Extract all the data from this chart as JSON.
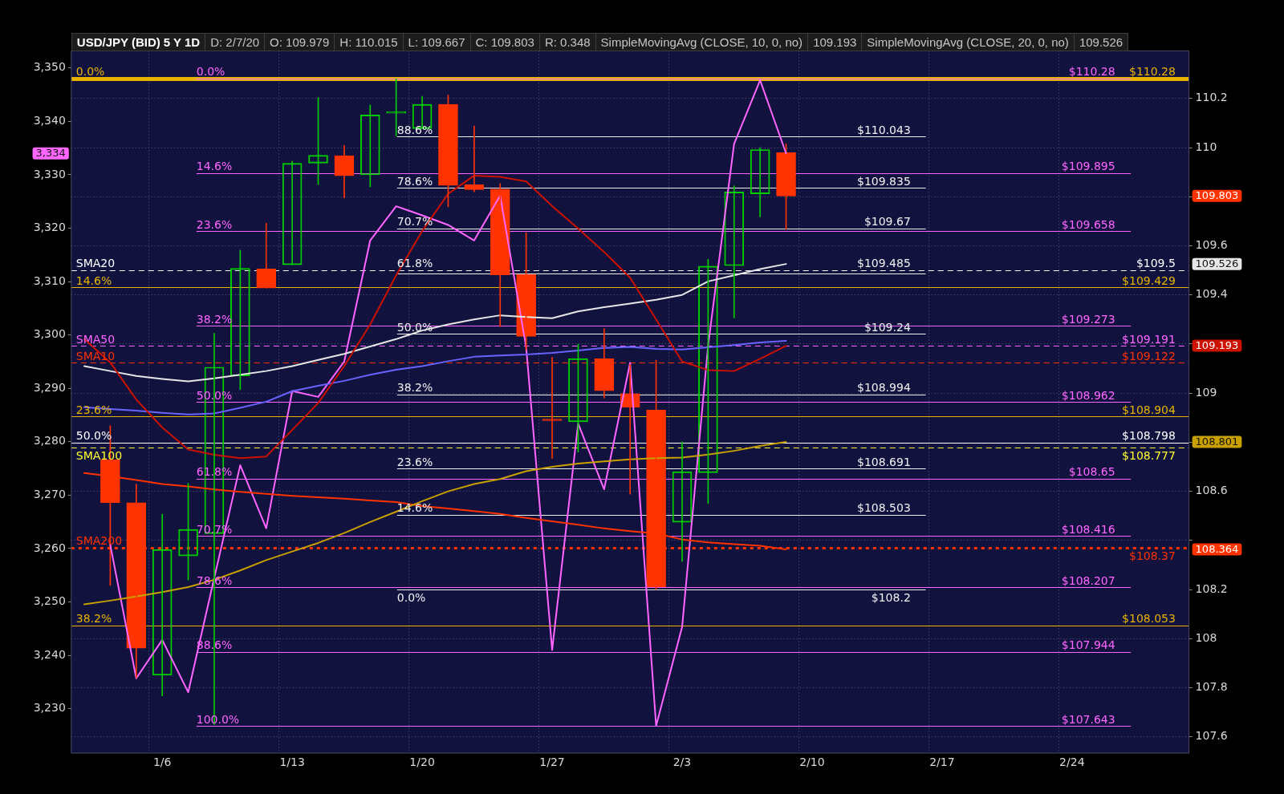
{
  "chart_data": {
    "type": "candlestick",
    "title": "USD/JPY (BID) 5 Y 1D",
    "annotations": [
      "D: 2/7/20",
      "O: 109.979",
      "H: 110.015",
      "L: 109.667",
      "C: 109.803",
      "R: 0.348",
      "SimpleMovingAvg (CLOSE, 10, 0, no)",
      "109.193",
      "SimpleMovingAvg (CLOSE, 20, 0, no)",
      "109.526",
      {
        "text": "0.0%",
        "y": 110.28
      },
      {
        "text": "14.6%",
        "y": 109.429
      },
      {
        "text": "23.6%",
        "y": 108.904
      },
      {
        "text": "38.2%",
        "y": 108.053
      },
      {
        "text": "50.0%",
        "y": 108.798
      },
      {
        "text": "88.6%",
        "y": 110.043
      },
      {
        "text": "78.6%",
        "y": 109.835
      },
      {
        "text": "70.7%",
        "y": 109.67
      },
      {
        "text": "61.8%",
        "y": 109.485
      },
      {
        "text": "50.0%",
        "y": 109.24
      },
      {
        "text": "38.2%",
        "y": 108.994
      },
      {
        "text": "23.6%",
        "y": 108.691
      },
      {
        "text": "14.6%",
        "y": 108.503
      },
      {
        "text": "0.0%",
        "y": 108.2
      },
      {
        "text": "0.0%",
        "y": 110.28
      },
      {
        "text": "14.6%",
        "y": 109.895
      },
      {
        "text": "23.6%",
        "y": 109.658
      },
      {
        "text": "38.2%",
        "y": 109.273
      },
      {
        "text": "50.0%",
        "y": 108.962
      },
      {
        "text": "61.8%",
        "y": 108.65
      },
      {
        "text": "70.7%",
        "y": 108.416
      },
      {
        "text": "78.6%",
        "y": 108.207
      },
      {
        "text": "88.6%",
        "y": 107.944
      },
      {
        "text": "100.0%",
        "y": 107.643
      },
      {
        "text": "SMA20",
        "y": 109.5
      },
      {
        "text": "SMA50",
        "y": 109.191
      },
      {
        "text": "SMA10",
        "y": 109.122
      },
      {
        "text": "SMA100",
        "y": 108.777
      },
      {
        "text": "SMA200",
        "y": 108.37
      }
    ],
    "categories": [
      null,
      null,
      null,
      "1/6",
      null,
      null,
      null,
      null,
      "1/13",
      null,
      null,
      null,
      null,
      "1/20",
      null,
      null,
      null,
      null,
      "1/27",
      null,
      null,
      null,
      null,
      "2/3",
      null,
      null,
      null,
      null,
      "2/10",
      null,
      null,
      null,
      null,
      "2/17",
      null,
      null,
      null,
      null,
      "2/24",
      null,
      null,
      null,
      null
    ],
    "ohlc": [
      null,
      [
        108.729,
        108.867,
        108.217,
        108.554
      ],
      [
        108.554,
        108.63,
        107.841,
        107.961
      ],
      [
        107.851,
        108.507,
        107.767,
        108.363
      ],
      [
        108.337,
        108.633,
        108.239,
        108.445
      ],
      [
        108.428,
        109.244,
        107.65,
        109.106
      ],
      [
        109.07,
        109.582,
        109.014,
        109.508
      ],
      [
        109.506,
        109.692,
        109.428,
        109.428
      ],
      [
        109.523,
        109.944,
        109.523,
        109.936
      ],
      [
        109.937,
        110.204,
        109.849,
        109.969
      ],
      [
        109.967,
        110.009,
        109.795,
        109.885
      ],
      [
        109.889,
        110.174,
        109.84,
        110.133
      ],
      [
        110.14,
        110.28,
        110.048,
        110.144
      ],
      [
        110.077,
        110.209,
        110.077,
        110.176
      ],
      [
        110.176,
        110.214,
        109.759,
        109.846
      ],
      [
        109.849,
        110.088,
        109.82,
        109.829
      ],
      [
        109.831,
        109.854,
        109.271,
        109.482
      ],
      [
        109.484,
        109.654,
        109.176,
        109.231
      ],
      [
        108.893,
        109.146,
        108.735,
        108.888
      ],
      [
        108.883,
        109.199,
        108.76,
        109.141
      ],
      [
        109.141,
        109.263,
        108.98,
        109.01
      ],
      [
        108.998,
        109.117,
        108.589,
        108.942
      ],
      [
        108.931,
        109.134,
        108.2,
        108.21
      ],
      [
        108.474,
        108.801,
        108.315,
        108.68
      ],
      [
        108.676,
        109.545,
        108.55,
        109.517
      ],
      [
        109.519,
        109.844,
        109.306,
        109.819
      ],
      [
        109.812,
        110.0,
        109.718,
        109.992
      ],
      [
        109.979,
        110.015,
        109.667,
        109.803
      ],
      null,
      null,
      null,
      null,
      null,
      null,
      null,
      null,
      null,
      null,
      null,
      null,
      null,
      null,
      null
    ],
    "colors": [
      null,
      "#ff3300",
      "#ff3300",
      "#00cc00",
      "#00cc00",
      "#00cc00",
      "#00cc00",
      "#ff3300",
      "#00cc00",
      "#00cc00",
      "#ff3300",
      "#00cc00",
      "#00cc00",
      "#00cc00",
      "#ff3300",
      "#ff3300",
      "#ff3300",
      "#ff3300",
      "#ff3300",
      "#00cc00",
      "#ff3300",
      "#ff3300",
      "#ff3300",
      "#00cc00",
      "#00cc00",
      "#00cc00",
      "#00cc00",
      "#ff3300",
      null,
      null,
      null,
      null,
      null,
      null,
      null,
      null,
      null,
      null,
      null,
      null,
      null,
      null,
      null
    ],
    "series": [
      {
        "type": "line",
        "color": "#cc1100",
        "values": [
          109.22,
          109.125,
          108.974,
          108.86,
          108.77,
          108.749,
          108.735,
          108.742,
          108.85,
          108.96,
          109.11,
          109.28,
          109.48,
          109.66,
          109.812,
          109.886,
          109.881,
          109.862,
          109.762,
          109.67,
          109.575,
          109.47,
          109.3,
          109.129,
          109.094,
          109.09,
          109.14,
          109.193,
          null,
          null,
          null,
          null,
          null,
          null,
          null,
          null,
          null,
          null,
          null,
          null,
          null,
          null,
          null
        ]
      },
      {
        "type": "line",
        "color": "#e6e6e6",
        "values": [
          109.11,
          109.09,
          109.07,
          109.058,
          109.048,
          109.06,
          109.075,
          109.09,
          109.11,
          109.135,
          109.16,
          109.19,
          109.22,
          109.255,
          109.28,
          109.3,
          109.317,
          109.31,
          109.305,
          109.333,
          109.35,
          109.365,
          109.38,
          109.4,
          109.455,
          109.48,
          109.505,
          109.526,
          null,
          null,
          null,
          null,
          null,
          null,
          null,
          null,
          null,
          null,
          null,
          null,
          null,
          null,
          null
        ]
      },
      {
        "type": "line",
        "color": "#6a62ff",
        "values": [
          108.943,
          108.935,
          108.929,
          108.92,
          108.913,
          108.917,
          108.94,
          108.965,
          109.008,
          109.03,
          109.05,
          109.075,
          109.095,
          109.11,
          109.13,
          109.148,
          109.153,
          109.157,
          109.164,
          109.174,
          109.184,
          109.188,
          109.18,
          109.178,
          109.187,
          109.196,
          109.206,
          109.213,
          null,
          null,
          null,
          null,
          null,
          null,
          null,
          null,
          null,
          null,
          null,
          null,
          null,
          null,
          null
        ]
      },
      {
        "type": "line",
        "color": "#c8a000",
        "values": [
          108.14,
          108.155,
          108.172,
          108.19,
          108.21,
          108.24,
          108.278,
          108.32,
          108.355,
          108.39,
          108.43,
          108.475,
          108.517,
          108.56,
          108.6,
          108.63,
          108.65,
          108.682,
          108.7,
          108.713,
          108.722,
          108.73,
          108.735,
          108.738,
          108.75,
          108.765,
          108.785,
          108.801,
          null,
          null,
          null,
          null,
          null,
          null,
          null,
          null,
          null,
          null,
          null,
          null,
          null,
          null,
          null
        ]
      },
      {
        "type": "line",
        "color": "#ff3300",
        "values": [
          108.675,
          108.662,
          108.646,
          108.63,
          108.62,
          108.608,
          108.598,
          108.59,
          108.582,
          108.576,
          108.57,
          108.563,
          108.556,
          108.54,
          108.53,
          108.52,
          108.508,
          108.492,
          108.478,
          108.464,
          108.449,
          108.438,
          108.428,
          108.404,
          108.392,
          108.385,
          108.378,
          108.364,
          null,
          null,
          null,
          null,
          null,
          null,
          null,
          null,
          null,
          null,
          null,
          null,
          null,
          null,
          null
        ]
      },
      {
        "type": "line",
        "axis": "y2",
        "color": "#ff66ff",
        "values": [
          null,
          3260.7,
          3235.7,
          3242.9,
          3233.1,
          3254.5,
          3275.6,
          3263.8,
          3289.5,
          3288.4,
          3295,
          3317.7,
          3324.1,
          3322.4,
          3320.6,
          3317.7,
          3326.1,
          3297.7,
          3241,
          3283.4,
          3271.1,
          3294.8,
          3226.8,
          3245.3,
          3298,
          3335.8,
          3347.7,
          3334,
          null,
          null,
          null,
          null,
          null,
          null,
          null,
          null,
          null,
          null,
          null,
          null,
          null,
          null,
          null
        ]
      }
    ],
    "ylim": [
      107.534,
      110.394
    ],
    "yticks": [
      107.6,
      107.8,
      108,
      108.2,
      108.364,
      {
        "value": 108.4,
        "label": null
      },
      108.6,
      {
        "value": 108.8,
        "label": null
      },
      108.801,
      109,
      109.193,
      {
        "value": 109.2,
        "label": null
      },
      109.4,
      109.526,
      109.6,
      {
        "value": 109.8,
        "label": null
      },
      109.803,
      110,
      110.2
    ],
    "y2lim": [
      3221.7,
      3353.2
    ],
    "y2ticks": [
      {
        "value": 3230,
        "label": "3,230"
      },
      {
        "value": 3240,
        "label": "3,240"
      },
      {
        "value": 3250,
        "label": "3,250"
      },
      {
        "value": 3260,
        "label": "3,260"
      },
      {
        "value": 3270,
        "label": "3,270"
      },
      {
        "value": 3280,
        "label": "3,280"
      },
      {
        "value": 3290,
        "label": "3,290"
      },
      {
        "value": 3300,
        "label": "3,300"
      },
      {
        "value": 3310,
        "label": "3,310"
      },
      {
        "value": 3320,
        "label": "3,320"
      },
      {
        "value": 3330,
        "label": "3,330"
      },
      {
        "value": 3334,
        "label": "3,334"
      },
      {
        "value": 3340,
        "label": "3,340"
      },
      {
        "value": 3350,
        "label": "3,350"
      }
    ],
    "ref_lines": [
      {
        "axis": "y",
        "value": 110.28,
        "label": "$110.28",
        "color": "#e6b400"
      },
      {
        "axis": "y",
        "value": 109.429,
        "label": "$109.429",
        "color": "#e6b400"
      },
      {
        "axis": "y",
        "value": 108.904,
        "label": "$108.904",
        "color": "#e6b400"
      },
      {
        "axis": "y",
        "value": 108.053,
        "label": "$108.053",
        "color": "#e6b400"
      },
      {
        "axis": "y",
        "value": 108.798,
        "label": "$108.798",
        "color": "#ffffff"
      },
      {
        "axis": "y",
        "value": 110.043,
        "label": "$110.043",
        "color": "#f0f0f0"
      },
      {
        "axis": "y",
        "value": 109.835,
        "label": "$109.835",
        "color": "#f0f0f0"
      },
      {
        "axis": "y",
        "value": 109.67,
        "label": "$109.67",
        "color": "#f0f0f0"
      },
      {
        "axis": "y",
        "value": 109.485,
        "label": "$109.485",
        "color": "#f0f0f0"
      },
      {
        "axis": "y",
        "value": 109.24,
        "label": "$109.24",
        "color": "#f0f0f0"
      },
      {
        "axis": "y",
        "value": 108.994,
        "label": "$108.994",
        "color": "#f0f0f0"
      },
      {
        "axis": "y",
        "value": 108.691,
        "label": "$108.691",
        "color": "#f0f0f0"
      },
      {
        "axis": "y",
        "value": 108.503,
        "label": "$108.503",
        "color": "#f0f0f0"
      },
      {
        "axis": "y",
        "value": 108.2,
        "label": "$108.2",
        "color": "#f0f0f0"
      },
      {
        "axis": "y",
        "value": 110.28,
        "label": "$110.28",
        "color": "#ff66ff"
      },
      {
        "axis": "y",
        "value": 109.895,
        "label": "$109.895",
        "color": "#ff66ff"
      },
      {
        "axis": "y",
        "value": 109.658,
        "label": "$109.658",
        "color": "#ff66ff"
      },
      {
        "axis": "y",
        "value": 109.273,
        "label": "$109.273",
        "color": "#ff66ff"
      },
      {
        "axis": "y",
        "value": 108.962,
        "label": "$108.962",
        "color": "#ff66ff"
      },
      {
        "axis": "y",
        "value": 108.65,
        "label": "$108.65",
        "color": "#ff66ff"
      },
      {
        "axis": "y",
        "value": 108.416,
        "label": "$108.416",
        "color": "#ff66ff"
      },
      {
        "axis": "y",
        "value": 108.207,
        "label": "$108.207",
        "color": "#ff66ff"
      },
      {
        "axis": "y",
        "value": 107.944,
        "label": "$107.944",
        "color": "#ff66ff"
      },
      {
        "axis": "y",
        "value": 107.643,
        "label": "$107.643",
        "color": "#ff66ff"
      },
      {
        "axis": "y",
        "value": 109.5,
        "label": "$109.5",
        "color": "#ffffff",
        "line_style": "dashed"
      },
      {
        "axis": "y",
        "value": 109.191,
        "label": "$109.191",
        "color": "#ff66ff",
        "line_style": "dashed"
      },
      {
        "axis": "y",
        "value": 109.122,
        "label": "$109.122",
        "color": "#ff3300",
        "line_style": "dashed"
      },
      {
        "axis": "y",
        "value": 108.777,
        "label": "$108.777",
        "color": "#ffff33",
        "line_style": "dashed"
      },
      {
        "axis": "y",
        "value": 108.37,
        "label": "$108.37",
        "color": "#ff3300",
        "line_style": "dotted"
      }
    ],
    "grid": true,
    "marker": "none"
  }
}
